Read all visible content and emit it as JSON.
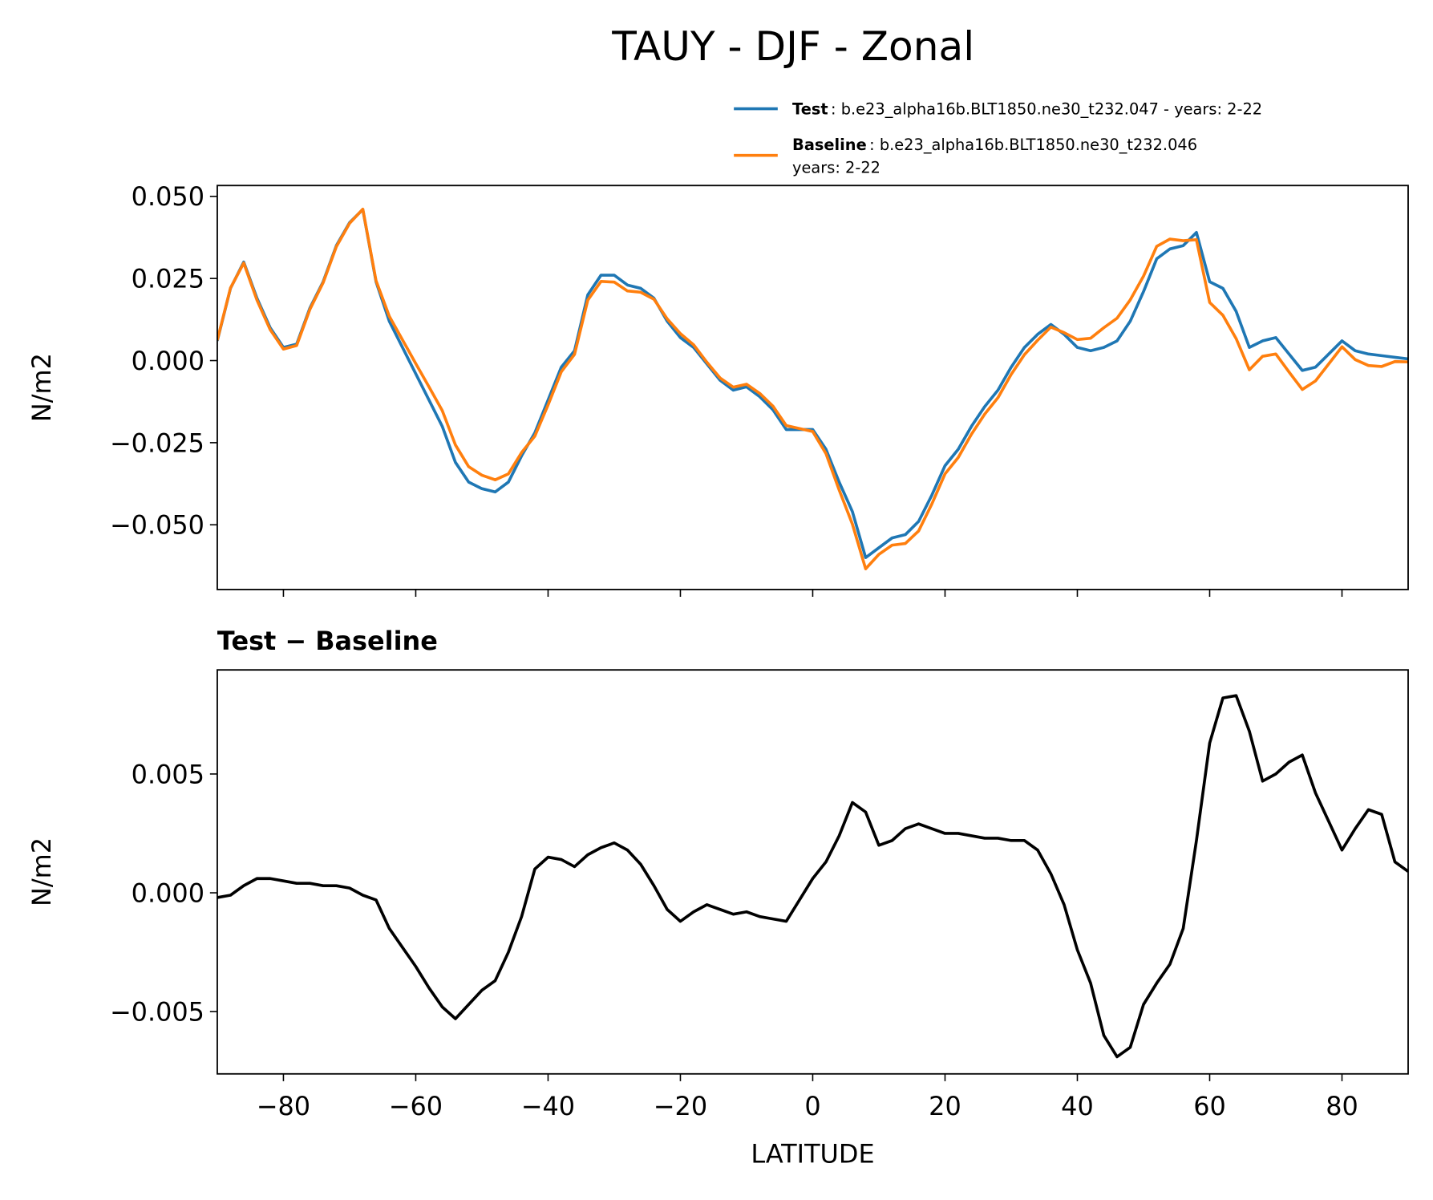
{
  "chart_data": [
    {
      "type": "line",
      "title": "TAUY - DJF - Zonal",
      "ylabel": "N/m2",
      "x": [
        -90,
        -88,
        -86,
        -84,
        -82,
        -80,
        -78,
        -76,
        -74,
        -72,
        -70,
        -68,
        -66,
        -64,
        -62,
        -60,
        -58,
        -56,
        -54,
        -52,
        -50,
        -48,
        -46,
        -44,
        -42,
        -40,
        -38,
        -36,
        -34,
        -32,
        -30,
        -28,
        -26,
        -24,
        -22,
        -20,
        -18,
        -16,
        -14,
        -12,
        -10,
        -8,
        -6,
        -4,
        -2,
        0,
        2,
        4,
        6,
        8,
        10,
        12,
        14,
        16,
        18,
        20,
        22,
        24,
        26,
        28,
        30,
        32,
        34,
        36,
        38,
        40,
        42,
        44,
        46,
        48,
        50,
        52,
        54,
        56,
        58,
        60,
        62,
        64,
        66,
        68,
        70,
        72,
        74,
        76,
        78,
        80,
        82,
        84,
        86,
        88,
        90
      ],
      "series": [
        {
          "name": "Test",
          "description": [
            ": b.e23_alpha16b.BLT1850.ne30_t232.047 - years: 2-22"
          ],
          "color": "#1f77b4",
          "values": [
            0.006,
            0.022,
            0.03,
            0.019,
            0.01,
            0.004,
            0.005,
            0.016,
            0.024,
            0.035,
            0.042,
            0.046,
            0.024,
            0.012,
            0.004,
            -0.004,
            -0.012,
            -0.02,
            -0.031,
            -0.037,
            -0.039,
            -0.04,
            -0.037,
            -0.029,
            -0.022,
            -0.012,
            -0.002,
            0.003,
            0.02,
            0.026,
            0.026,
            0.023,
            0.022,
            0.019,
            0.012,
            0.007,
            0.004,
            -0.001,
            -0.006,
            -0.009,
            -0.008,
            -0.011,
            -0.015,
            -0.021,
            -0.021,
            -0.021,
            -0.027,
            -0.037,
            -0.046,
            -0.06,
            -0.057,
            -0.054,
            -0.053,
            -0.049,
            -0.041,
            -0.032,
            -0.027,
            -0.02,
            -0.014,
            -0.009,
            -0.002,
            0.004,
            0.008,
            0.011,
            0.008,
            0.004,
            0.003,
            0.004,
            0.006,
            0.012,
            0.021,
            0.031,
            0.034,
            0.035,
            0.039,
            0.024,
            0.022,
            0.015,
            0.004,
            0.006,
            0.007,
            0.002,
            -0.003,
            -0.002,
            0.002,
            0.006,
            0.003,
            0.002,
            0.0015,
            0.001,
            0.0005
          ]
        },
        {
          "name": "Baseline",
          "description": [
            ": b.e23_alpha16b.BLT1850.ne30_t232.046",
            "years: 2-22"
          ],
          "color": "#ff7f0e",
          "values": [
            0.0062,
            0.0221,
            0.0297,
            0.0184,
            0.0094,
            0.0035,
            0.0046,
            0.0156,
            0.0237,
            0.0347,
            0.0418,
            0.0461,
            0.0243,
            0.0135,
            0.0063,
            -0.0009,
            -0.008,
            -0.0152,
            -0.0257,
            -0.0323,
            -0.0349,
            -0.0363,
            -0.0345,
            -0.028,
            -0.023,
            -0.0135,
            -0.0034,
            0.0019,
            0.0184,
            0.0241,
            0.0239,
            0.0212,
            0.0208,
            0.0187,
            0.0127,
            0.0082,
            0.0048,
            -0.0005,
            -0.0053,
            -0.0081,
            -0.0072,
            -0.01,
            -0.0139,
            -0.0198,
            -0.0207,
            -0.0216,
            -0.0283,
            -0.0394,
            -0.0498,
            -0.0634,
            -0.059,
            -0.0562,
            -0.0557,
            -0.0519,
            -0.0437,
            -0.0345,
            -0.0295,
            -0.0224,
            -0.0163,
            -0.0113,
            -0.0042,
            0.0018,
            0.0062,
            0.0102,
            0.0085,
            0.0064,
            0.0068,
            0.01,
            0.0129,
            0.0185,
            0.0257,
            0.0348,
            0.037,
            0.0365,
            0.0368,
            0.0177,
            0.0138,
            0.0067,
            -0.0028,
            0.0013,
            0.002,
            -0.0035,
            -0.0088,
            -0.0062,
            -0.001,
            0.0042,
            0.0003,
            -0.0015,
            -0.0018,
            -0.0003,
            -0.0004
          ]
        }
      ],
      "xlim": [
        -90,
        90
      ],
      "xticks": [
        -80,
        -60,
        -40,
        -20,
        0,
        20,
        40,
        60,
        80
      ],
      "ylim": [
        -0.0697,
        0.0533
      ],
      "yticks": [
        {
          "value": -0.05,
          "label": "−0.050"
        },
        {
          "value": -0.025,
          "label": "−0.025"
        },
        {
          "value": 0,
          "label": "0.000"
        },
        {
          "value": 0.025,
          "label": "0.025"
        },
        {
          "value": 0.05,
          "label": "0.050"
        }
      ],
      "legend": "upper right"
    },
    {
      "type": "line",
      "title": "Test − Baseline",
      "ylabel": "N/m2",
      "xlabel": "LATITUDE",
      "x": [
        -90,
        -88,
        -86,
        -84,
        -82,
        -80,
        -78,
        -76,
        -74,
        -72,
        -70,
        -68,
        -66,
        -64,
        -62,
        -60,
        -58,
        -56,
        -54,
        -52,
        -50,
        -48,
        -46,
        -44,
        -42,
        -40,
        -38,
        -36,
        -34,
        -32,
        -30,
        -28,
        -26,
        -24,
        -22,
        -20,
        -18,
        -16,
        -14,
        -12,
        -10,
        -8,
        -6,
        -4,
        -2,
        0,
        2,
        4,
        6,
        8,
        10,
        12,
        14,
        16,
        18,
        20,
        22,
        24,
        26,
        28,
        30,
        32,
        34,
        36,
        38,
        40,
        42,
        44,
        46,
        48,
        50,
        52,
        54,
        56,
        58,
        60,
        62,
        64,
        66,
        68,
        70,
        72,
        74,
        76,
        78,
        80,
        82,
        84,
        86,
        88,
        90
      ],
      "series": [
        {
          "color": "#000000",
          "values": [
            -0.0002,
            -0.0001,
            0.0003,
            0.0006,
            0.0006,
            0.0005,
            0.0004,
            0.0004,
            0.0003,
            0.0003,
            0.0002,
            -0.0001,
            -0.0003,
            -0.0015,
            -0.0023,
            -0.0031,
            -0.004,
            -0.0048,
            -0.0053,
            -0.0047,
            -0.0041,
            -0.0037,
            -0.0025,
            -0.001,
            0.001,
            0.0015,
            0.0014,
            0.0011,
            0.0016,
            0.0019,
            0.0021,
            0.0018,
            0.0012,
            0.0003,
            -0.0007,
            -0.0012,
            -0.0008,
            -0.0005,
            -0.0007,
            -0.0009,
            -0.0008,
            -0.001,
            -0.0011,
            -0.0012,
            -0.0003,
            0.0006,
            0.0013,
            0.0024,
            0.0038,
            0.0034,
            0.002,
            0.0022,
            0.0027,
            0.0029,
            0.0027,
            0.0025,
            0.0025,
            0.0024,
            0.0023,
            0.0023,
            0.0022,
            0.0022,
            0.0018,
            0.0008,
            -0.0005,
            -0.0024,
            -0.0038,
            -0.006,
            -0.0069,
            -0.0065,
            -0.0047,
            -0.0038,
            -0.003,
            -0.0015,
            0.0022,
            0.0063,
            0.0082,
            0.0083,
            0.0068,
            0.0047,
            0.005,
            0.0055,
            0.0058,
            0.0042,
            0.003,
            0.0018,
            0.0027,
            0.0035,
            0.0033,
            0.0013,
            0.0009
          ]
        }
      ],
      "xlim": [
        -90,
        90
      ],
      "xticks": [
        {
          "value": -80,
          "label": "−80"
        },
        {
          "value": -60,
          "label": "−60"
        },
        {
          "value": -40,
          "label": "−40"
        },
        {
          "value": -20,
          "label": "−20"
        },
        0,
        20,
        40,
        60,
        80
      ],
      "ylim": [
        -0.00762,
        0.00938
      ],
      "yticks": [
        {
          "value": -0.005,
          "label": "−0.005"
        },
        {
          "value": 0,
          "label": "0.000"
        },
        {
          "value": 0.005,
          "label": "0.005"
        }
      ]
    }
  ]
}
